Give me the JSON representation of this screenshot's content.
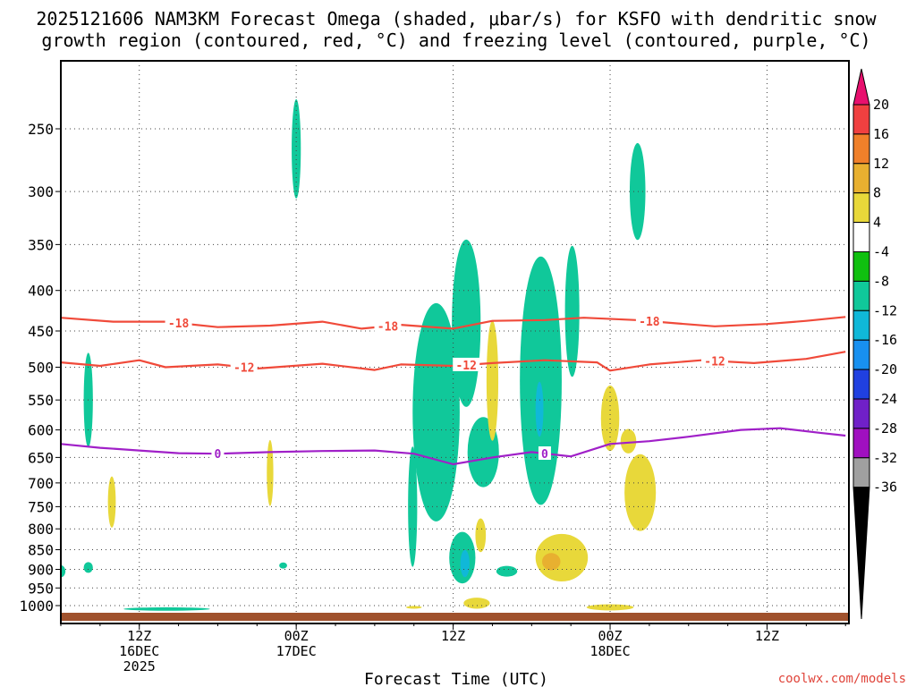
{
  "chart_data": {
    "type": "heatmap",
    "title_line1": "2025121606 NAM3KM Forecast Omega (shaded, μbar/s) for KSFO with dendritic snow",
    "title_line2": "growth region (contoured, red, °C) and freezing level (contoured, purple, °C)",
    "xlabel": "Forecast Time (UTC)",
    "credit": "coolwx.com/models",
    "x_range_hours": [
      0,
      60
    ],
    "x_ticks": [
      {
        "hour": 6,
        "line1": "12Z",
        "line2": "16DEC",
        "line3": "2025"
      },
      {
        "hour": 18,
        "line1": "00Z",
        "line2": "17DEC",
        "line3": ""
      },
      {
        "hour": 30,
        "line1": "12Z",
        "line2": "",
        "line3": ""
      },
      {
        "hour": 42,
        "line1": "00Z",
        "line2": "18DEC",
        "line3": ""
      },
      {
        "hour": 54,
        "line1": "12Z",
        "line2": "",
        "line3": ""
      }
    ],
    "y_ticks": [
      250,
      300,
      350,
      400,
      450,
      500,
      550,
      600,
      650,
      700,
      750,
      800,
      850,
      900,
      950,
      1000
    ],
    "colorbar": {
      "labels": [
        "20",
        "16",
        "12",
        "8",
        "4",
        "-4",
        "-8",
        "-12",
        "-16",
        "-20",
        "-24",
        "-28",
        "-32",
        "-36"
      ],
      "colors": [
        "#e8106e",
        "#f04040",
        "#f0802a",
        "#e8b030",
        "#e8d83a",
        "#ffffff",
        "#10c010",
        "#10c89a",
        "#10b8d8",
        "#1890f0",
        "#2040e0",
        "#7020c8",
        "#a010c0",
        "#a0a0a0",
        "#000000"
      ]
    },
    "contours": [
      {
        "name": "dgz-top",
        "label": "-18",
        "color": "#f04a3a",
        "labels_at_hours": [
          9,
          25,
          45
        ],
        "points": [
          [
            0,
            433
          ],
          [
            4,
            438
          ],
          [
            8,
            438
          ],
          [
            12,
            445
          ],
          [
            16,
            443
          ],
          [
            20,
            438
          ],
          [
            23,
            447
          ],
          [
            26,
            442
          ],
          [
            30,
            447
          ],
          [
            33,
            437
          ],
          [
            37,
            436
          ],
          [
            40,
            433
          ],
          [
            44,
            436
          ],
          [
            47,
            440
          ],
          [
            50,
            444
          ],
          [
            54,
            441
          ],
          [
            57,
            437
          ],
          [
            60,
            432
          ]
        ]
      },
      {
        "name": "dgz-bottom",
        "label": "-12",
        "color": "#f04a3a",
        "labels_at_hours": [
          14,
          31,
          50
        ],
        "points": [
          [
            0,
            493
          ],
          [
            3,
            498
          ],
          [
            6,
            490
          ],
          [
            8,
            500
          ],
          [
            12,
            496
          ],
          [
            15,
            502
          ],
          [
            20,
            495
          ],
          [
            24,
            504
          ],
          [
            26,
            496
          ],
          [
            30,
            498
          ],
          [
            33,
            494
          ],
          [
            37,
            490
          ],
          [
            41,
            493
          ],
          [
            42,
            505
          ],
          [
            45,
            496
          ],
          [
            49,
            490
          ],
          [
            53,
            494
          ],
          [
            57,
            488
          ],
          [
            60,
            478
          ]
        ]
      },
      {
        "name": "freezing-level",
        "label": "0",
        "color": "#a020c8",
        "labels_at_hours": [
          12,
          37
        ],
        "points": [
          [
            0,
            625
          ],
          [
            3,
            632
          ],
          [
            6,
            637
          ],
          [
            9,
            642
          ],
          [
            12,
            643
          ],
          [
            16,
            640
          ],
          [
            20,
            638
          ],
          [
            24,
            637
          ],
          [
            27,
            643
          ],
          [
            30,
            663
          ],
          [
            33,
            650
          ],
          [
            36,
            640
          ],
          [
            39,
            648
          ],
          [
            42,
            625
          ],
          [
            45,
            620
          ],
          [
            48,
            612
          ],
          [
            52,
            600
          ],
          [
            55,
            597
          ],
          [
            58,
            605
          ],
          [
            60,
            610
          ]
        ]
      }
    ],
    "omega_regions": [
      {
        "level": "-8",
        "center": [
          18.0,
          265
        ],
        "half_width": 0.35,
        "half_height": 38
      },
      {
        "level": "-8",
        "center": [
          2.1,
          550
        ],
        "half_width": 0.35,
        "half_height": 75
      },
      {
        "level": "-8",
        "center": [
          44.1,
          300
        ],
        "half_width": 0.6,
        "half_height": 42
      },
      {
        "level": "-8",
        "center": [
          39.1,
          425
        ],
        "half_width": 0.55,
        "half_height": 80
      },
      {
        "level": "-8",
        "center": [
          28.7,
          570
        ],
        "half_width": 1.8,
        "half_height": 175
      },
      {
        "level": "-8",
        "center": [
          31.0,
          440
        ],
        "half_width": 1.1,
        "half_height": 105
      },
      {
        "level": "-8",
        "center": [
          32.3,
          640
        ],
        "half_width": 1.2,
        "half_height": 65
      },
      {
        "level": "-8",
        "center": [
          36.7,
          520
        ],
        "half_width": 1.6,
        "half_height": 180
      },
      {
        "level": "-8",
        "center": [
          26.9,
          750
        ],
        "half_width": 0.35,
        "half_height": 130
      },
      {
        "level": "-8",
        "center": [
          30.7,
          870
        ],
        "half_width": 1.0,
        "half_height": 65
      },
      {
        "level": "-8",
        "center": [
          34.1,
          905
        ],
        "half_width": 0.8,
        "half_height": 14
      },
      {
        "level": "-8",
        "center": [
          2.1,
          895
        ],
        "half_width": 0.35,
        "half_height": 14
      },
      {
        "level": "-8",
        "center": [
          17.0,
          890
        ],
        "half_width": 0.3,
        "half_height": 8
      },
      {
        "level": "-8",
        "center": [
          0.0,
          905
        ],
        "half_width": 0.35,
        "half_height": 16
      },
      {
        "level": "-8",
        "center": [
          8.1,
          1010
        ],
        "half_width": 3.3,
        "half_height": 5
      },
      {
        "level": "-12",
        "center": [
          30.9,
          885
        ],
        "half_width": 0.35,
        "half_height": 35
      },
      {
        "level": "-12",
        "center": [
          36.6,
          565
        ],
        "half_width": 0.3,
        "half_height": 45
      },
      {
        "level": "4",
        "center": [
          3.9,
          740
        ],
        "half_width": 0.3,
        "half_height": 55
      },
      {
        "level": "4",
        "center": [
          16.0,
          680
        ],
        "half_width": 0.25,
        "half_height": 65
      },
      {
        "level": "4",
        "center": [
          33.0,
          520
        ],
        "half_width": 0.45,
        "half_height": 90
      },
      {
        "level": "4",
        "center": [
          32.1,
          815
        ],
        "half_width": 0.4,
        "half_height": 40
      },
      {
        "level": "4",
        "center": [
          38.3,
          870
        ],
        "half_width": 2.0,
        "half_height": 60
      },
      {
        "level": "4",
        "center": [
          42.0,
          580
        ],
        "half_width": 0.7,
        "half_height": 55
      },
      {
        "level": "4",
        "center": [
          44.3,
          720
        ],
        "half_width": 1.2,
        "half_height": 80
      },
      {
        "level": "4",
        "center": [
          43.4,
          620
        ],
        "half_width": 0.6,
        "half_height": 22
      },
      {
        "level": "4",
        "center": [
          31.8,
          993
        ],
        "half_width": 1.0,
        "half_height": 16
      },
      {
        "level": "4",
        "center": [
          42.0,
          1005
        ],
        "half_width": 1.8,
        "half_height": 9
      },
      {
        "level": "4",
        "center": [
          27.0,
          1005
        ],
        "half_width": 0.6,
        "half_height": 4
      },
      {
        "level": "8",
        "center": [
          37.5,
          880
        ],
        "half_width": 0.7,
        "half_height": 22
      }
    ],
    "surface": {
      "color": "#a0522d"
    }
  }
}
